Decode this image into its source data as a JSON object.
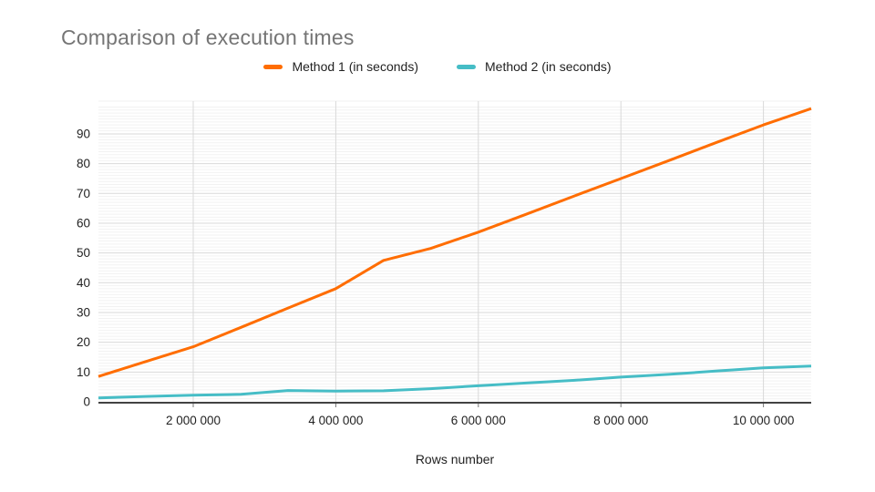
{
  "chart": {
    "title": "Comparison of execution times",
    "x_axis_title": "Rows number"
  },
  "legend": {
    "items": [
      {
        "label": "Method 1 (in seconds)",
        "color": "#ff6d01"
      },
      {
        "label": "Method 2 (in seconds)",
        "color": "#46bdc6"
      }
    ]
  },
  "chart_data": {
    "type": "line",
    "title": "Comparison of execution times",
    "xlabel": "Rows number",
    "ylabel": "",
    "legend_position": "top",
    "grid": "on",
    "x": [
      670000,
      1330000,
      2000000,
      2670000,
      3330000,
      4000000,
      4670000,
      5330000,
      6000000,
      6670000,
      7330000,
      8000000,
      8670000,
      9330000,
      10000000,
      10670000
    ],
    "series": [
      {
        "name": "Method 1 (in seconds)",
        "color": "#ff6d01",
        "values": [
          8.5,
          13.5,
          18.5,
          25,
          31.5,
          38,
          47.5,
          51.5,
          57,
          63,
          69,
          75,
          81,
          87,
          93,
          98.5
        ]
      },
      {
        "name": "Method 2 (in seconds)",
        "color": "#46bdc6",
        "values": [
          1.3,
          1.8,
          2.2,
          2.5,
          3.8,
          3.6,
          3.7,
          4.4,
          5.4,
          6.3,
          7.2,
          8.3,
          9.2,
          10.3,
          11.4,
          12
        ]
      }
    ],
    "x_ticks": [
      {
        "value": 2000000,
        "label": "2 000 000"
      },
      {
        "value": 4000000,
        "label": "4 000 000"
      },
      {
        "value": 6000000,
        "label": "6 000 000"
      },
      {
        "value": 8000000,
        "label": "8 000 000"
      },
      {
        "value": 10000000,
        "label": "10 000 000"
      }
    ],
    "y_ticks": [
      0,
      10,
      20,
      30,
      40,
      50,
      60,
      70,
      80,
      90
    ],
    "xlim": [
      670000,
      10670000
    ],
    "ylim": [
      0,
      101
    ]
  },
  "style": {
    "title_color": "#757575",
    "tick_label_color": "#222222",
    "axis_line_color": "#424242",
    "tick_mark_color": "#757575",
    "major_grid_color": "#d9d9d9",
    "minor_grid_color": "#f2f2f2",
    "background": "#ffffff"
  }
}
